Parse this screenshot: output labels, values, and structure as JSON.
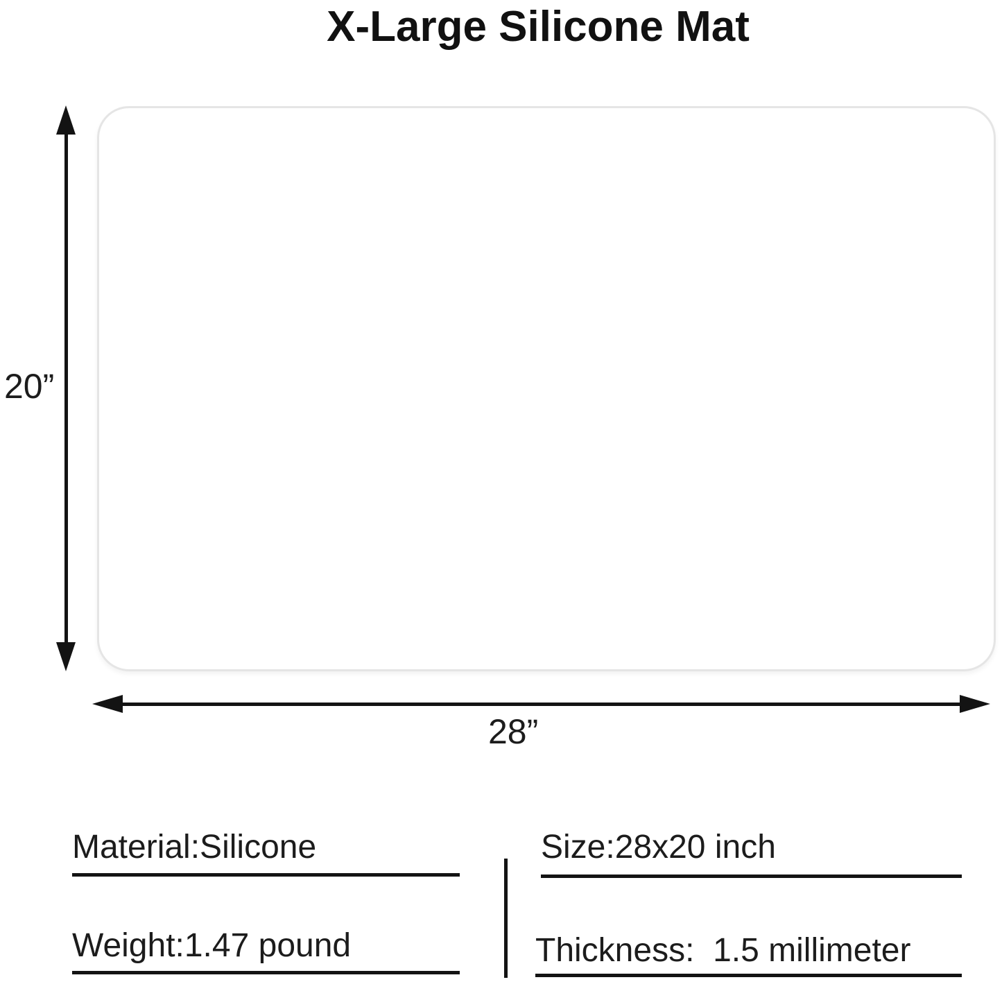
{
  "title": "X-Large Silicone Mat",
  "dimensions": {
    "height_label": "20”",
    "width_label": "28”"
  },
  "specs": {
    "material": "Material:Silicone",
    "weight": "Weight:1.47 pound",
    "size": "Size:28x20 inch",
    "thickness": "Thickness:  1.5 millimeter"
  },
  "colors": {
    "text": "#1c1c1c",
    "line": "#131313",
    "mat_border": "#e5e5e5",
    "background": "#ffffff"
  }
}
